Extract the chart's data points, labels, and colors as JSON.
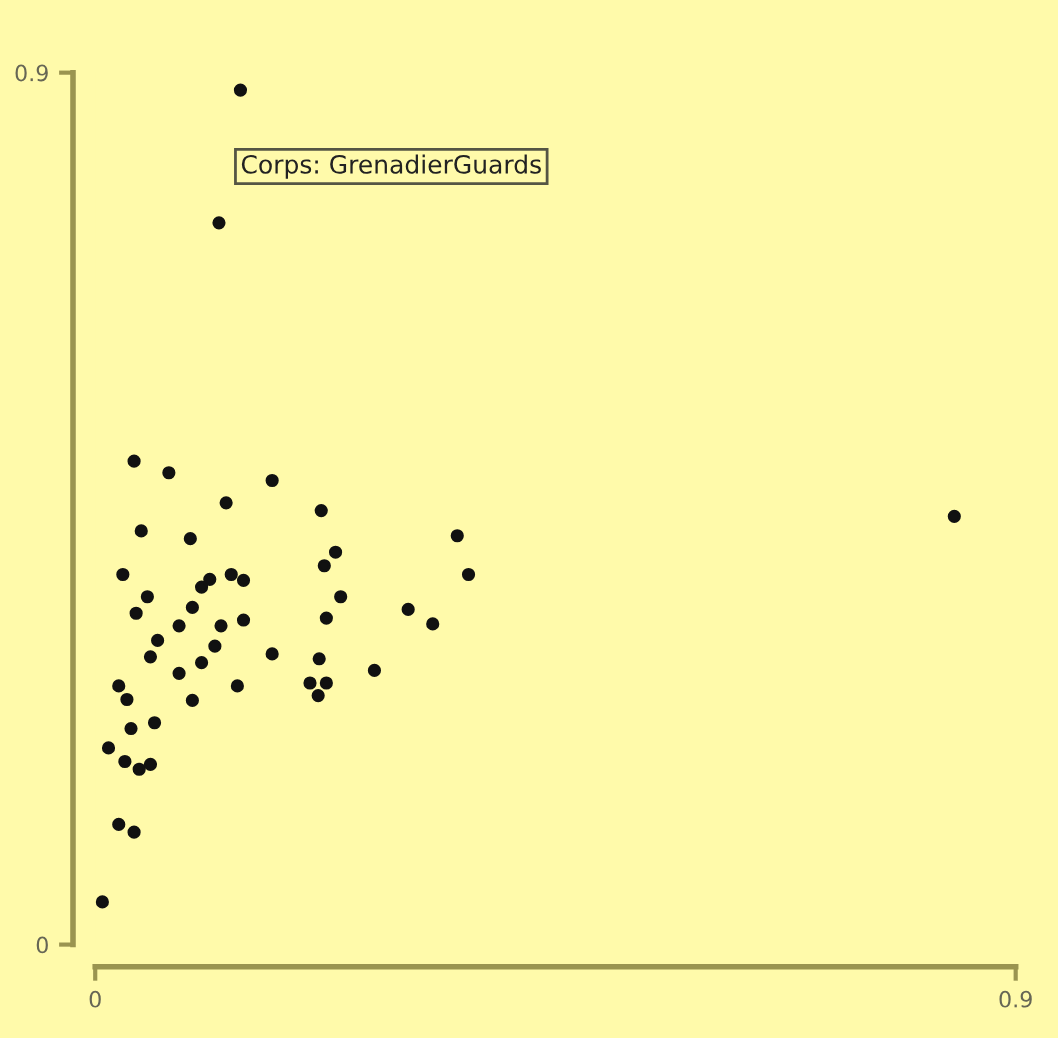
{
  "chart_data": {
    "type": "scatter",
    "xlim": [
      0,
      0.9
    ],
    "ylim": [
      0,
      0.9
    ],
    "xticks": [
      0,
      0.9
    ],
    "yticks": [
      0,
      0.9
    ],
    "grid": false,
    "legend": false,
    "marker": "circle",
    "annotations": [
      {
        "text": "Corps: GrenadierGuards",
        "x": 0.142,
        "y": 0.882
      }
    ],
    "series": [
      {
        "color": "#111111",
        "x": [
          0.038,
          0.072,
          0.173,
          0.128,
          0.221,
          0.045,
          0.093,
          0.354,
          0.027,
          0.235,
          0.224,
          0.365,
          0.112,
          0.104,
          0.133,
          0.145,
          0.051,
          0.24,
          0.04,
          0.095,
          0.226,
          0.082,
          0.123,
          0.145,
          0.306,
          0.33,
          0.061,
          0.117,
          0.054,
          0.173,
          0.104,
          0.219,
          0.082,
          0.273,
          0.023,
          0.031,
          0.095,
          0.139,
          0.21,
          0.226,
          0.218,
          0.058,
          0.035,
          0.013,
          0.029,
          0.043,
          0.054,
          0.023,
          0.038,
          0.007,
          0.142,
          0.121,
          0.84
        ],
        "values": [
          0.499,
          0.487,
          0.479,
          0.456,
          0.448,
          0.427,
          0.419,
          0.422,
          0.382,
          0.405,
          0.391,
          0.382,
          0.377,
          0.369,
          0.382,
          0.376,
          0.359,
          0.359,
          0.342,
          0.348,
          0.337,
          0.329,
          0.329,
          0.335,
          0.346,
          0.331,
          0.314,
          0.308,
          0.297,
          0.3,
          0.291,
          0.295,
          0.28,
          0.283,
          0.267,
          0.253,
          0.252,
          0.267,
          0.27,
          0.27,
          0.257,
          0.229,
          0.223,
          0.203,
          0.189,
          0.181,
          0.186,
          0.124,
          0.116,
          0.044,
          0.882,
          0.745,
          0.442
        ]
      }
    ]
  }
}
